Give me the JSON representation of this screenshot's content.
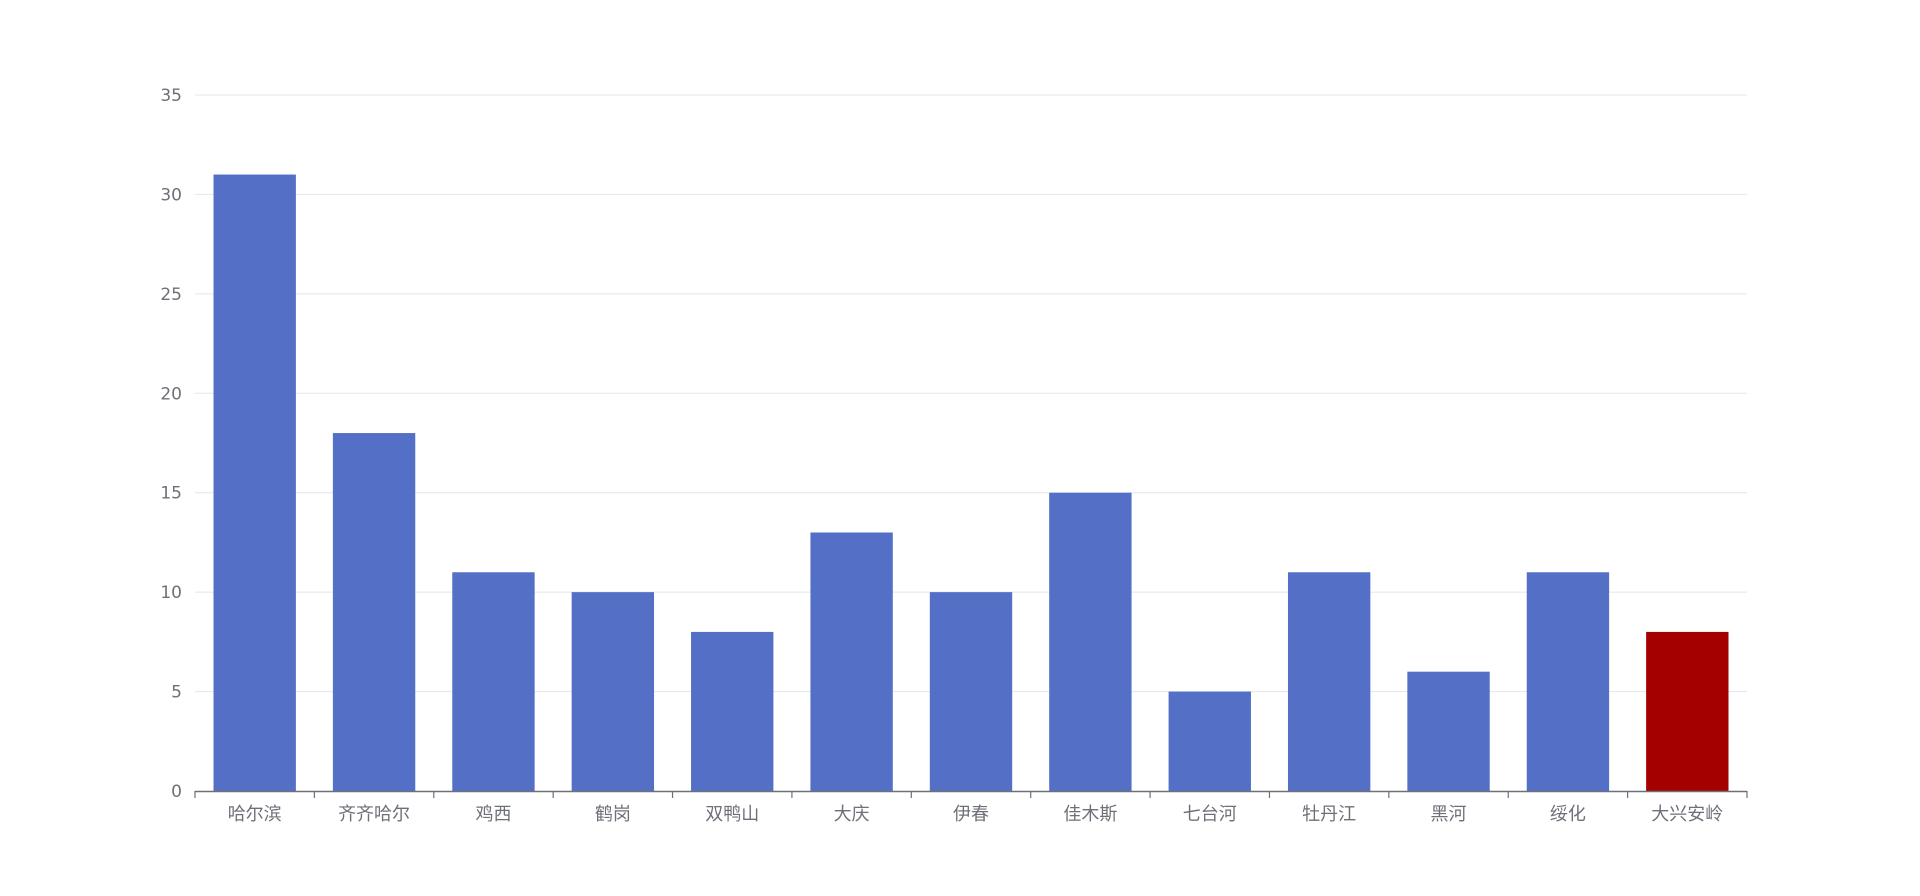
{
  "chart_data": {
    "type": "bar",
    "categories": [
      "哈尔滨",
      "齐齐哈尔",
      "鸡西",
      "鹤岗",
      "双鸭山",
      "大庆",
      "伊春",
      "佳木斯",
      "七台河",
      "牡丹江",
      "黑河",
      "绥化",
      "大兴安岭"
    ],
    "series": [
      {
        "values": [
          31,
          18,
          11,
          10,
          8,
          13,
          10,
          15,
          5,
          11,
          6,
          11,
          8
        ]
      }
    ],
    "highlight_category": "大兴安岭",
    "ylim": [
      0,
      35
    ],
    "yticks": [
      "0",
      "5",
      "10",
      "15",
      "20",
      "25",
      "30",
      "35"
    ],
    "grid": true,
    "colors": {
      "bar": "#5470c6",
      "highlight": "#a50000",
      "grid": "#e0e6f1",
      "axis": "#6e7079",
      "label": "#6e7079"
    }
  }
}
